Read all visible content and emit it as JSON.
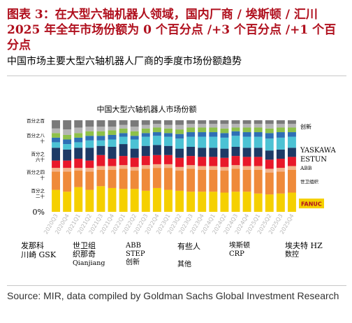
{
  "header": {
    "title": "图表 3：在大型六轴机器人领域，国内厂商 / 埃斯顿 / 汇川 2025 年全年市场份额为 0 个百分点 /+3 个百分点 /+1 个百分点",
    "subtitle": "中国市场主要大型六轴机器人厂商的季度市场份额趋势"
  },
  "footer": {
    "source": "Source: MIR, data compiled by Goldman Sachs Global Investment Research"
  },
  "chart_data": {
    "type": "bar",
    "stacked": true,
    "title": "中国大型六轴机器人市场份额",
    "categories": [
      "2020Q3",
      "2020Q4",
      "2021Q1",
      "2021Q2",
      "2021Q3",
      "2021Q4",
      "2022Q1",
      "2022Q2",
      "2022Q3",
      "2022Q4",
      "2023Q1",
      "2023Q2",
      "2023Q3",
      "2023Q4",
      "2024Q1",
      "2024Q2",
      "2024Q3",
      "2024Q4",
      "2025Q1",
      "2025Q2",
      "2025Q3",
      "2025Q4"
    ],
    "y_tick_labels": [
      "0%",
      "百分之\n二十",
      "百分之四\n十",
      "百分之\n六十",
      "百分之八\n十",
      "百分之百"
    ],
    "ylim": [
      0,
      100
    ],
    "series": [
      {
        "name": "FANUC",
        "color": "#f5d000",
        "values": [
          24,
          22,
          27,
          24,
          28,
          26,
          25,
          25,
          23,
          26,
          24,
          23,
          22,
          22,
          22,
          21,
          22,
          22,
          20,
          19,
          20,
          21
        ]
      },
      {
        "name": "",
        "color": "#ef8a3a",
        "values": [
          20,
          22,
          18,
          20,
          18,
          20,
          22,
          20,
          24,
          22,
          24,
          22,
          25,
          24,
          24,
          24,
          25,
          24,
          26,
          24,
          24,
          25
        ]
      },
      {
        "name": "",
        "color": "#f2b38a",
        "values": [
          4,
          4,
          3,
          4,
          4,
          4,
          4,
          4,
          4,
          4,
          4,
          4,
          4,
          4,
          4,
          4,
          4,
          4,
          4,
          4,
          4,
          4
        ]
      },
      {
        "name": "",
        "color": "#e8182a",
        "values": [
          8,
          8,
          10,
          8,
          12,
          8,
          10,
          10,
          10,
          10,
          10,
          10,
          10,
          10,
          10,
          10,
          10,
          10,
          10,
          10,
          10,
          10
        ]
      },
      {
        "name": "",
        "color": "#1d3a66",
        "values": [
          14,
          12,
          12,
          14,
          10,
          13,
          13,
          10,
          11,
          11,
          10,
          10,
          10,
          10,
          10,
          10,
          10,
          10,
          10,
          10,
          10,
          10
        ]
      },
      {
        "name": "",
        "color": "#4cc2d4",
        "values": [
          6,
          6,
          6,
          8,
          6,
          8,
          8,
          10,
          10,
          10,
          10,
          11,
          11,
          12,
          12,
          12,
          12,
          12,
          12,
          13,
          13,
          12
        ]
      },
      {
        "name": "",
        "color": "#2e6fb5",
        "values": [
          5,
          5,
          5,
          5,
          5,
          5,
          4,
          4,
          4,
          4,
          4,
          5,
          5,
          5,
          5,
          5,
          5,
          5,
          5,
          6,
          6,
          5
        ]
      },
      {
        "name": "",
        "color": "#8ec04a",
        "values": [
          5,
          5,
          5,
          5,
          5,
          5,
          5,
          5,
          5,
          5,
          5,
          5,
          5,
          5,
          5,
          5,
          4,
          5,
          5,
          5,
          5,
          5
        ]
      },
      {
        "name": "",
        "color": "#b5b5b5",
        "values": [
          5,
          6,
          6,
          5,
          5,
          4,
          4,
          5,
          4,
          4,
          4,
          5,
          4,
          4,
          4,
          5,
          4,
          4,
          4,
          5,
          4,
          4
        ]
      },
      {
        "name": "",
        "color": "#7a7a7a",
        "values": [
          9,
          10,
          8,
          7,
          7,
          7,
          5,
          7,
          5,
          4,
          5,
          5,
          4,
          4,
          4,
          4,
          4,
          4,
          4,
          4,
          4,
          4
        ]
      }
    ],
    "right_labels": [
      "创新",
      "YASKAWA",
      "ESTUN",
      "ABB",
      "世卫组织",
      "FANUC"
    ],
    "bottom_labels": [
      [
        "发那科",
        "川崎 GSK"
      ],
      [
        "世卫组",
        "织那奇",
        "Qianjiang"
      ],
      [
        "ABB",
        "STEP",
        "创新"
      ],
      [
        "有些人",
        "其他"
      ],
      [
        "埃斯顿",
        "CRP"
      ],
      [
        "埃夫特 HZ",
        "数控"
      ]
    ]
  }
}
